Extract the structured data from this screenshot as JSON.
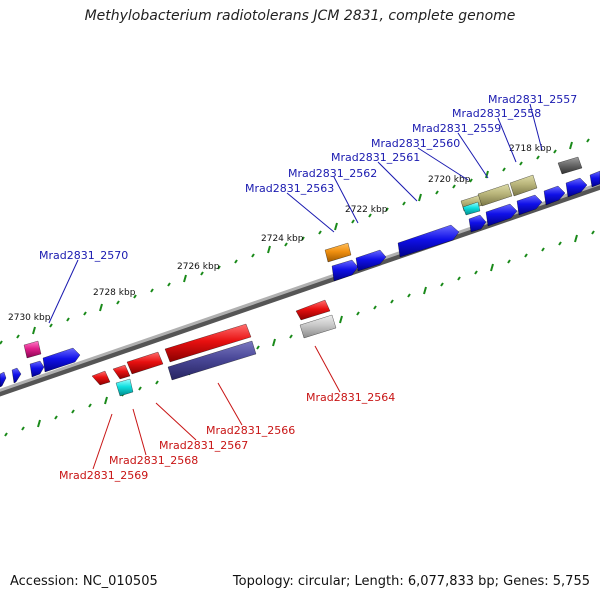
{
  "header": {
    "title": "Methylobacterium radiotolerans JCM 2831, complete genome"
  },
  "footer": {
    "accession": "Accession: NC_010505",
    "topology": "Topology: circular; Length: 6,077,833 bp; Genes: 5,755"
  },
  "colors": {
    "forward_gene": "#1010e8",
    "reverse_gene": "#e81010",
    "backbone": "#8a8a8a",
    "tick_green": "#1a8a1a",
    "label_fwd": "#1a1ab0",
    "label_rev": "#c81414"
  },
  "scale_labels": [
    "2718 kbp",
    "2720 kbp",
    "2722 kbp",
    "2724 kbp",
    "2726 kbp",
    "2728 kbp",
    "2730 kbp"
  ],
  "forward_gene_labels": [
    "Mrad2831_2557",
    "Mrad2831_2558",
    "Mrad2831_2559",
    "Mrad2831_2560",
    "Mrad2831_2561",
    "Mrad2831_2562",
    "Mrad2831_2563",
    "Mrad2831_2570"
  ],
  "reverse_gene_labels": [
    "Mrad2831_2564",
    "Mrad2831_2566",
    "Mrad2831_2567",
    "Mrad2831_2568",
    "Mrad2831_2569"
  ]
}
